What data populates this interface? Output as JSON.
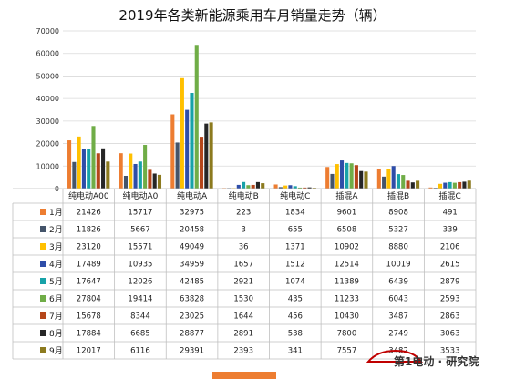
{
  "chart_data": {
    "type": "bar",
    "title": "2019年各类新能源乘用车月销量走势（辆）",
    "categories": [
      "纯电动A00",
      "纯电动A0",
      "纯电动A",
      "纯电动B",
      "纯电动C",
      "插混A",
      "插混B",
      "插混C"
    ],
    "ylim": [
      0,
      70000
    ],
    "yticks": [
      0,
      10000,
      20000,
      30000,
      40000,
      50000,
      60000,
      70000
    ],
    "grid": true,
    "legend": "table-left",
    "series": [
      {
        "name": "1月",
        "color": "#ed7d31",
        "values": [
          21426,
          15717,
          32975,
          223,
          1834,
          9601,
          8908,
          491
        ]
      },
      {
        "name": "2月",
        "color": "#44546a",
        "values": [
          11826,
          5667,
          20458,
          3,
          655,
          6508,
          5327,
          339
        ]
      },
      {
        "name": "3月",
        "color": "#ffc000",
        "values": [
          23120,
          15571,
          49049,
          36,
          1371,
          10902,
          8880,
          2106
        ]
      },
      {
        "name": "4月",
        "color": "#2e4da8",
        "values": [
          17489,
          10935,
          34959,
          1657,
          1512,
          12514,
          10019,
          2615
        ]
      },
      {
        "name": "5月",
        "color": "#17a2a8",
        "values": [
          17647,
          12026,
          42485,
          2921,
          1074,
          11389,
          6439,
          2879
        ]
      },
      {
        "name": "6月",
        "color": "#70ad47",
        "values": [
          27804,
          19414,
          63828,
          1530,
          435,
          11233,
          6043,
          2593
        ]
      },
      {
        "name": "7月",
        "color": "#b5461a",
        "values": [
          15678,
          8344,
          23025,
          1644,
          456,
          10430,
          3487,
          2863
        ]
      },
      {
        "name": "8月",
        "color": "#262626",
        "values": [
          17884,
          6685,
          28877,
          2891,
          538,
          7800,
          2749,
          3063
        ]
      },
      {
        "name": "9月",
        "color": "#8c7a1e",
        "values": [
          12017,
          6116,
          29391,
          2393,
          341,
          7557,
          3482,
          3533
        ]
      }
    ]
  },
  "watermark": {
    "text": "第1电动 · 研究院"
  }
}
